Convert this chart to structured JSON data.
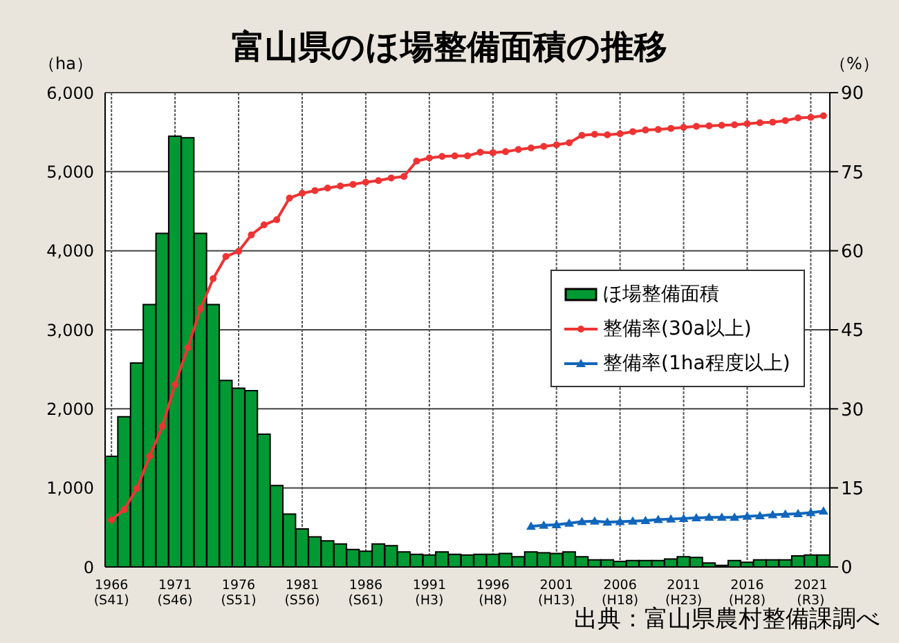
{
  "chart_data": {
    "type": "bar",
    "title": "富山県のほ場整備面積の推移",
    "ylabel": "（ha）",
    "y2label": "（%）",
    "annotations": [
      "出典：富山県農村整備課調べ"
    ],
    "categories": [
      "1966\n(S41)",
      null,
      null,
      null,
      null,
      "1971\n(S46)",
      null,
      null,
      null,
      null,
      "1976\n(S51)",
      null,
      null,
      null,
      null,
      "1981\n(S56)",
      null,
      null,
      null,
      null,
      "1986\n(S61)",
      null,
      null,
      null,
      null,
      "1991\n(H3)",
      null,
      null,
      null,
      null,
      "1996\n(H8)",
      null,
      null,
      null,
      null,
      "2001\n(H13)",
      null,
      null,
      null,
      null,
      "2006\n(H18)",
      null,
      null,
      null,
      null,
      "2011\n(H23)",
      null,
      null,
      null,
      null,
      "2016\n(H28)",
      null,
      null,
      null,
      null,
      "2021\n(R3)",
      null
    ],
    "series": [
      {
        "name": "ほ場整備面積",
        "color": "#009933",
        "values": [
          1400,
          1900,
          2580,
          3320,
          4220,
          5450,
          5430,
          4220,
          3320,
          2360,
          2260,
          2230,
          1680,
          1030,
          670,
          480,
          380,
          330,
          290,
          220,
          200,
          290,
          270,
          190,
          160,
          150,
          190,
          160,
          150,
          160,
          160,
          170,
          130,
          190,
          180,
          170,
          190,
          130,
          90,
          90,
          70,
          80,
          80,
          80,
          100,
          130,
          120,
          50,
          20,
          80,
          60,
          90,
          90,
          90,
          140,
          150,
          150
        ]
      },
      {
        "name": "整備率(30a以上)",
        "type": "line",
        "axis": "y2",
        "color": "#ee3333",
        "marker": "circle",
        "values": [
          8.9,
          10.9,
          14.9,
          21.0,
          26.7,
          34.6,
          41.6,
          49.0,
          54.7,
          58.9,
          59.9,
          63.0,
          64.9,
          65.9,
          70.0,
          70.9,
          71.4,
          71.9,
          72.3,
          72.6,
          73.0,
          73.3,
          73.8,
          74.1,
          77.0,
          77.6,
          77.9,
          78.0,
          78.0,
          78.7,
          78.6,
          78.8,
          79.2,
          79.5,
          79.8,
          80.1,
          80.5,
          81.9,
          82.1,
          82.0,
          82.2,
          82.6,
          82.9,
          83.0,
          83.2,
          83.4,
          83.6,
          83.7,
          83.8,
          83.9,
          84.1,
          84.3,
          84.4,
          84.7,
          85.2,
          85.3,
          85.6
        ]
      },
      {
        "name": "整備率(1ha程度以上)",
        "type": "line",
        "axis": "y2",
        "color": "#1166bb",
        "marker": "triangle",
        "values": [
          null,
          null,
          null,
          null,
          null,
          null,
          null,
          null,
          null,
          null,
          null,
          null,
          null,
          null,
          null,
          null,
          null,
          null,
          null,
          null,
          null,
          null,
          null,
          null,
          null,
          null,
          null,
          null,
          null,
          null,
          null,
          null,
          null,
          7.7,
          7.9,
          8.0,
          8.3,
          8.6,
          8.7,
          8.5,
          8.6,
          8.7,
          8.8,
          9.0,
          9.1,
          9.2,
          9.3,
          9.4,
          9.4,
          9.4,
          9.6,
          9.7,
          9.9,
          10.0,
          10.1,
          10.3,
          10.6
        ]
      }
    ],
    "ylim": [
      0,
      6000
    ],
    "yticks": [
      {
        "value": 0,
        "label": "0"
      },
      {
        "value": 1000,
        "label": "1,000"
      },
      {
        "value": 2000,
        "label": "2,000"
      },
      {
        "value": 3000,
        "label": "3,000"
      },
      {
        "value": 4000,
        "label": "4,000"
      },
      {
        "value": 5000,
        "label": "5,000"
      },
      {
        "value": 6000,
        "label": "6,000"
      }
    ],
    "y2lim": [
      0,
      90
    ],
    "y2ticks": [
      0,
      15,
      30,
      45,
      60,
      75,
      90
    ],
    "grid": true,
    "legend": "right"
  }
}
